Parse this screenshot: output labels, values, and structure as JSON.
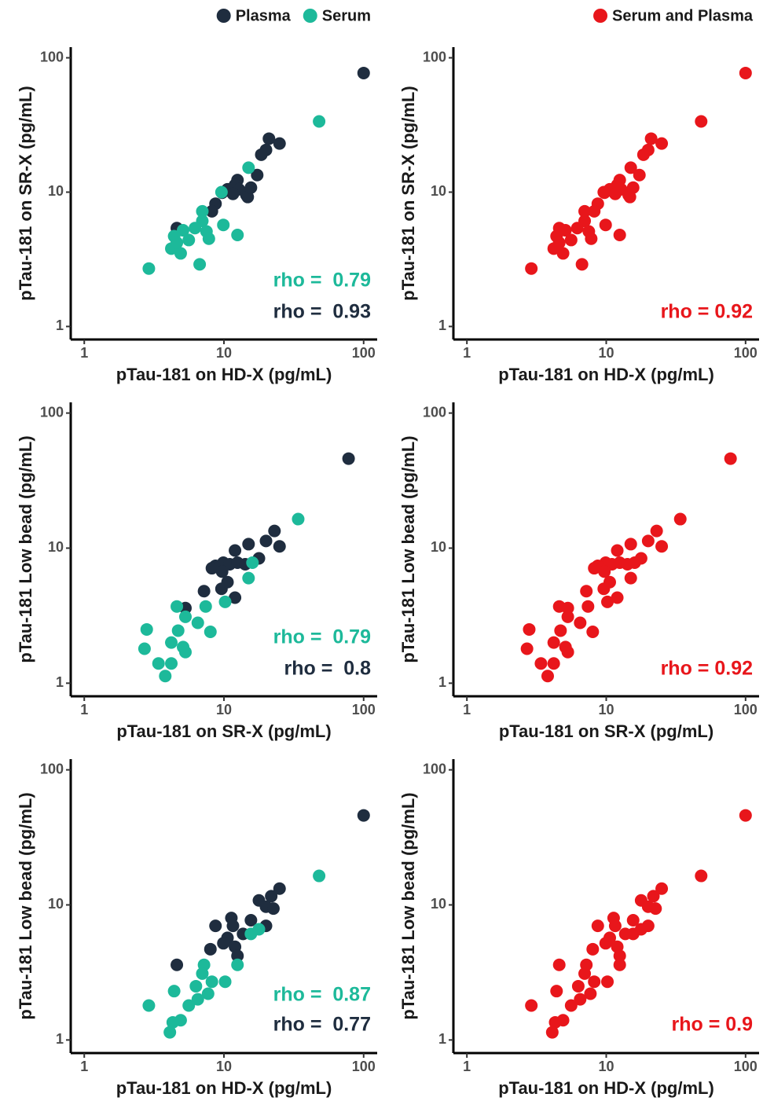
{
  "chart_data": [
    {
      "type": "scatter",
      "xlabel": "pTau-181 on HD-X (pg/mL)",
      "ylabel": "pTau-181 on SR-X (pg/mL)",
      "log_x": true,
      "log_y": true,
      "xlim": [
        0.8,
        125
      ],
      "ylim": [
        0.8,
        120
      ],
      "xticks": [
        1,
        10,
        100
      ],
      "yticks": [
        1,
        10,
        100
      ],
      "series": [
        {
          "name": "Plasma",
          "color": "#1f2d3f",
          "x": [
            100,
            21,
            25,
            20,
            18.5,
            12.5,
            12,
            12.8,
            10.6,
            9.7,
            11.6,
            14.5,
            8.7,
            8.2,
            17.3,
            4.6,
            14.8,
            15.6
          ],
          "values": [
            77,
            25,
            23,
            20.6,
            19,
            12.3,
            11.3,
            10.5,
            10.5,
            9.9,
            9.7,
            9.5,
            8.2,
            7.2,
            13.4,
            5.4,
            9.2,
            10.8
          ]
        },
        {
          "name": "Serum",
          "color": "#1db99a",
          "x": [
            48,
            15,
            9.6,
            7,
            7,
            6.2,
            5.1,
            7.5,
            7.8,
            9.9,
            12.5,
            4.4,
            4.2,
            4.9,
            6.7,
            2.9,
            4.6,
            5.6
          ],
          "values": [
            33.6,
            15.2,
            10,
            7.2,
            6.1,
            5.4,
            5.2,
            5.1,
            4.5,
            5.7,
            4.8,
            4.7,
            3.8,
            3.5,
            2.9,
            2.7,
            4.2,
            4.4
          ]
        }
      ],
      "annotations": [
        {
          "text": "rho =  0.79",
          "color": "#1db99a"
        },
        {
          "text": "rho =  0.93",
          "color": "#1f2d3f"
        }
      ]
    },
    {
      "type": "scatter",
      "xlabel": "pTau-181 on HD-X (pg/mL)",
      "ylabel": "pTau-181 on SR-X (pg/mL)",
      "log_x": true,
      "log_y": true,
      "xlim": [
        0.8,
        125
      ],
      "ylim": [
        0.8,
        120
      ],
      "xticks": [
        1,
        10,
        100
      ],
      "yticks": [
        1,
        10,
        100
      ],
      "series": [
        {
          "name": "Serum and Plasma",
          "color": "#e8161b",
          "x": [
            100,
            21,
            25,
            20,
            18.5,
            12.5,
            12,
            12.8,
            10.6,
            9.7,
            11.6,
            14.5,
            8.7,
            8.2,
            17.3,
            4.6,
            14.8,
            15.6,
            48,
            15,
            9.6,
            7,
            7,
            6.2,
            5.1,
            7.5,
            7.8,
            9.9,
            12.5,
            4.4,
            4.2,
            4.9,
            6.7,
            2.9,
            4.6,
            5.6
          ],
          "values": [
            77,
            25,
            23,
            20.6,
            19,
            12.3,
            11.3,
            10.5,
            10.5,
            9.9,
            9.7,
            9.5,
            8.2,
            7.2,
            13.4,
            5.4,
            9.2,
            10.8,
            33.6,
            15.2,
            10,
            7.2,
            6.1,
            5.4,
            5.2,
            5.1,
            4.5,
            5.7,
            4.8,
            4.7,
            3.8,
            3.5,
            2.9,
            2.7,
            4.2,
            4.4
          ]
        }
      ],
      "annotations": [
        {
          "text": "rho = 0.92",
          "color": "#e8161b"
        }
      ]
    },
    {
      "type": "scatter",
      "xlabel": "pTau-181 on SR-X (pg/mL)",
      "ylabel": "pTau-181 Low bead (pg/mL)",
      "log_x": true,
      "log_y": true,
      "xlim": [
        0.8,
        125
      ],
      "ylim": [
        0.8,
        120
      ],
      "xticks": [
        1,
        10,
        100
      ],
      "yticks": [
        1,
        10,
        100
      ],
      "series": [
        {
          "color": "#1f2d3f",
          "x": [
            78,
            23,
            20,
            25,
            15,
            12,
            9.9,
            11,
            12.5,
            8.7,
            8.2,
            9.7,
            14.2,
            17.8,
            7.2,
            9.6,
            12,
            5.3,
            10.6
          ],
          "values": [
            46,
            13.4,
            11.3,
            10.3,
            10.7,
            9.6,
            7.8,
            7.6,
            7.8,
            7.4,
            7.1,
            6.7,
            7.6,
            8.4,
            4.8,
            5,
            4.3,
            3.6,
            5.6
          ]
        },
        {
          "color": "#1db99a",
          "x": [
            34,
            16,
            15,
            10.2,
            7.4,
            4.6,
            5.3,
            6.5,
            8,
            4.7,
            4.2,
            2.8,
            5.1,
            2.7,
            3.4,
            4.2,
            3.8,
            5.3
          ],
          "values": [
            16.4,
            7.8,
            6,
            4,
            3.7,
            3.7,
            3.1,
            2.8,
            2.4,
            2.45,
            2,
            2.5,
            1.85,
            1.8,
            1.4,
            1.4,
            1.13,
            1.7
          ]
        }
      ],
      "annotations": [
        {
          "text": "rho =  0.79",
          "color": "#1db99a"
        },
        {
          "text": "rho =  0.8",
          "color": "#1f2d3f"
        }
      ]
    },
    {
      "type": "scatter",
      "xlabel": "pTau-181 on SR-X (pg/mL)",
      "ylabel": "pTau-181 Low bead (pg/mL)",
      "log_x": true,
      "log_y": true,
      "xlim": [
        0.8,
        125
      ],
      "ylim": [
        0.8,
        120
      ],
      "xticks": [
        1,
        10,
        100
      ],
      "yticks": [
        1,
        10,
        100
      ],
      "series": [
        {
          "color": "#e8161b",
          "x": [
            78,
            23,
            20,
            25,
            15,
            12,
            9.9,
            11,
            12.5,
            8.7,
            8.2,
            9.7,
            14.2,
            17.8,
            7.2,
            9.6,
            12,
            5.3,
            10.6,
            34,
            16,
            15,
            10.2,
            7.4,
            4.6,
            5.3,
            6.5,
            8,
            4.7,
            4.2,
            2.8,
            5.1,
            2.7,
            3.4,
            4.2,
            3.8,
            5.3
          ],
          "values": [
            46,
            13.4,
            11.3,
            10.3,
            10.7,
            9.6,
            7.8,
            7.6,
            7.8,
            7.4,
            7.1,
            6.7,
            7.6,
            8.4,
            4.8,
            5,
            4.3,
            3.6,
            5.6,
            16.4,
            7.8,
            6,
            4,
            3.7,
            3.7,
            3.1,
            2.8,
            2.4,
            2.45,
            2,
            2.5,
            1.85,
            1.8,
            1.4,
            1.4,
            1.13,
            1.7
          ]
        }
      ],
      "annotations": [
        {
          "text": "rho = 0.92",
          "color": "#e8161b"
        }
      ]
    },
    {
      "type": "scatter",
      "xlabel": "pTau-181 on HD-X (pg/mL)",
      "ylabel": "pTau-181 Low bead (pg/mL)",
      "log_x": true,
      "log_y": true,
      "xlim": [
        0.8,
        125
      ],
      "ylim": [
        0.8,
        120
      ],
      "xticks": [
        1,
        10,
        100
      ],
      "yticks": [
        1,
        10,
        100
      ],
      "series": [
        {
          "color": "#1f2d3f",
          "x": [
            100,
            25,
            21.8,
            17.8,
            20,
            22.6,
            11.3,
            8.7,
            11.6,
            15.6,
            13.7,
            10.6,
            8,
            9.9,
            12,
            12.5,
            20,
            4.6
          ],
          "values": [
            46,
            13.2,
            11.6,
            10.8,
            9.7,
            9.4,
            8,
            7,
            7,
            7.7,
            6.1,
            5.7,
            4.7,
            5.2,
            4.9,
            4.2,
            7,
            3.6
          ]
        },
        {
          "color": "#1db99a",
          "x": [
            48,
            15.6,
            17.8,
            12.5,
            7.2,
            7,
            10.2,
            8.2,
            6.3,
            7.7,
            4.4,
            6.5,
            5.6,
            2.9,
            4.9,
            4.3,
            4.1
          ],
          "values": [
            16.4,
            6.1,
            6.6,
            3.6,
            3.6,
            3.1,
            2.7,
            2.7,
            2.5,
            2.2,
            2.3,
            2,
            1.8,
            1.8,
            1.4,
            1.35,
            1.14
          ]
        }
      ],
      "annotations": [
        {
          "text": "rho =  0.87",
          "color": "#1db99a"
        },
        {
          "text": "rho =  0.77",
          "color": "#1f2d3f"
        }
      ]
    },
    {
      "type": "scatter",
      "xlabel": "pTau-181 on HD-X (pg/mL)",
      "ylabel": "pTau-181 Low bead (pg/mL)",
      "log_x": true,
      "log_y": true,
      "xlim": [
        0.8,
        125
      ],
      "ylim": [
        0.8,
        120
      ],
      "xticks": [
        1,
        10,
        100
      ],
      "yticks": [
        1,
        10,
        100
      ],
      "series": [
        {
          "color": "#e8161b",
          "x": [
            100,
            25,
            21.8,
            17.8,
            20,
            22.6,
            11.3,
            8.7,
            11.6,
            15.6,
            13.7,
            10.6,
            8,
            9.9,
            12,
            12.5,
            20,
            4.6,
            48,
            15.6,
            17.8,
            12.5,
            7.2,
            7,
            10.2,
            8.2,
            6.3,
            7.7,
            4.4,
            6.5,
            5.6,
            2.9,
            4.9,
            4.3,
            4.1
          ],
          "values": [
            46,
            13.2,
            11.6,
            10.8,
            9.7,
            9.4,
            8,
            7,
            7,
            7.7,
            6.1,
            5.7,
            4.7,
            5.2,
            4.9,
            4.2,
            7,
            3.6,
            16.4,
            6.1,
            6.6,
            3.6,
            3.6,
            3.1,
            2.7,
            2.7,
            2.5,
            2.2,
            2.3,
            2,
            1.8,
            1.8,
            1.4,
            1.35,
            1.14
          ]
        }
      ],
      "annotations": [
        {
          "text": "rho = 0.9",
          "color": "#e8161b"
        }
      ]
    }
  ]
}
